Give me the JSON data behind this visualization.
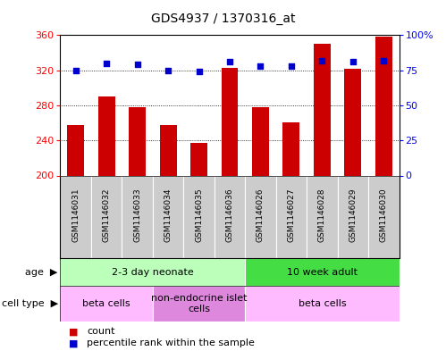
{
  "title": "GDS4937 / 1370316_at",
  "samples": [
    "GSM1146031",
    "GSM1146032",
    "GSM1146033",
    "GSM1146034",
    "GSM1146035",
    "GSM1146036",
    "GSM1146026",
    "GSM1146027",
    "GSM1146028",
    "GSM1146029",
    "GSM1146030"
  ],
  "counts": [
    258,
    290,
    278,
    257,
    237,
    323,
    278,
    261,
    350,
    322,
    358
  ],
  "percentiles": [
    75,
    80,
    79,
    75,
    74,
    81,
    78,
    78,
    82,
    81,
    82
  ],
  "ylim_left": [
    200,
    360
  ],
  "ylim_right": [
    0,
    100
  ],
  "yticks_left": [
    200,
    240,
    280,
    320,
    360
  ],
  "yticks_right": [
    0,
    25,
    50,
    75,
    100
  ],
  "bar_color": "#cc0000",
  "dot_color": "#0000cc",
  "age_groups": [
    {
      "label": "2-3 day neonate",
      "start": 0,
      "end": 6,
      "color": "#bbffbb"
    },
    {
      "label": "10 week adult",
      "start": 6,
      "end": 11,
      "color": "#44dd44"
    }
  ],
  "cell_type_groups": [
    {
      "label": "beta cells",
      "start": 0,
      "end": 3,
      "color": "#ffbbff"
    },
    {
      "label": "non-endocrine islet\ncells",
      "start": 3,
      "end": 6,
      "color": "#dd88dd"
    },
    {
      "label": "beta cells",
      "start": 6,
      "end": 11,
      "color": "#ffbbff"
    }
  ],
  "legend_items": [
    {
      "color": "#cc0000",
      "label": "count"
    },
    {
      "color": "#0000cc",
      "label": "percentile rank within the sample"
    }
  ]
}
